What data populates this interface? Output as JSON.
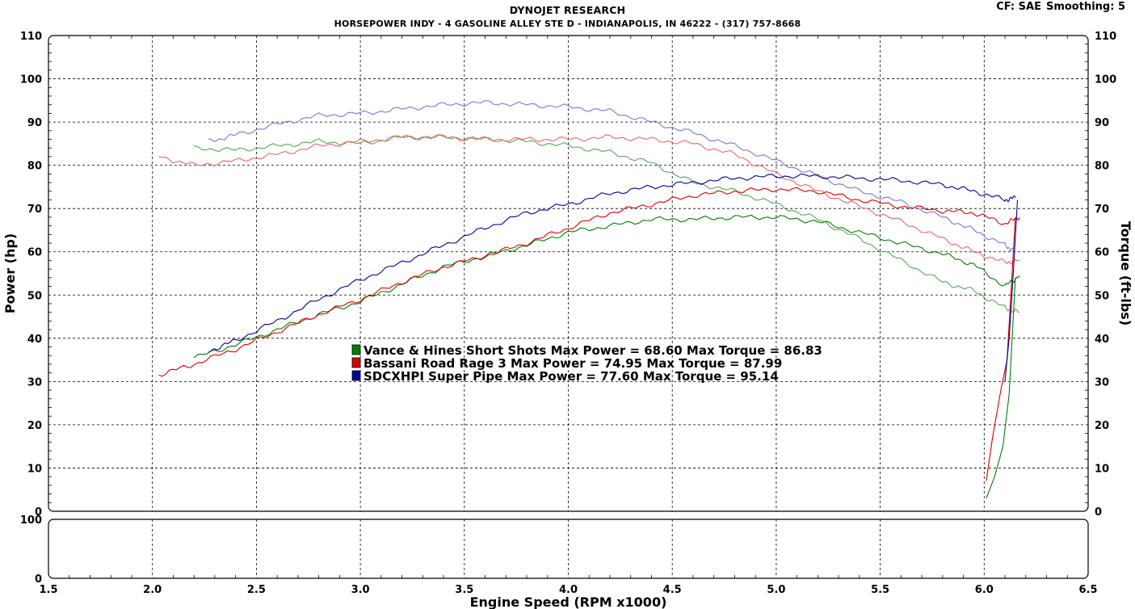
{
  "header": {
    "title": "DYNOJET RESEARCH",
    "subtitle": "HORSEPOWER INDY - 4 GASOLINE ALLEY STE D - INDIANAPOLIS, IN 46222 - (317) 757-8668",
    "cf_label": "CF: SAE",
    "smoothing_label": "Smoothing: 5"
  },
  "chart_data": {
    "type": "line",
    "title": "DYNOJET RESEARCH",
    "xlabel": "Engine Speed (RPM x1000)",
    "ylabel_left": "Power (hp)",
    "ylabel_right": "Torque (ft-lbs)",
    "xlim": [
      1.5,
      6.5
    ],
    "ylim": [
      0,
      110
    ],
    "lower_panel_ylim": [
      0,
      100
    ],
    "x_ticks": [
      "1.5",
      "2.0",
      "2.5",
      "3.0",
      "3.5",
      "4.0",
      "4.5",
      "5.0",
      "5.5",
      "6.0",
      "6.5"
    ],
    "y_ticks": [
      "0",
      "10",
      "20",
      "30",
      "40",
      "50",
      "60",
      "70",
      "80",
      "90",
      "100",
      "110"
    ],
    "lower_y_ticks": [
      "0",
      "100"
    ],
    "grid": true,
    "legend_position": "center",
    "series": [
      {
        "name": "Vance & Hines Short Shots",
        "legend": "Vance & Hines Short Shots Max Power = 68.60     Max Torque = 86.83",
        "color": "#008000",
        "torque_color": "#55aa55",
        "power": {
          "x": [
            2.2,
            2.4,
            2.6,
            2.8,
            3.0,
            3.2,
            3.4,
            3.6,
            3.8,
            4.0,
            4.2,
            4.4,
            4.6,
            4.8,
            5.0,
            5.2,
            5.4,
            5.6,
            5.8,
            5.95,
            6.1,
            6.17
          ],
          "y": [
            35.5,
            38.5,
            42,
            45.5,
            48.5,
            52.5,
            56.5,
            59,
            61.5,
            64.5,
            66,
            67.5,
            67.5,
            68,
            68,
            67,
            64.5,
            62,
            59.5,
            57,
            52,
            54.5
          ]
        },
        "torque": {
          "x": [
            2.2,
            2.4,
            2.6,
            2.8,
            3.0,
            3.2,
            3.4,
            3.6,
            3.8,
            4.0,
            4.2,
            4.4,
            4.6,
            4.8,
            5.0,
            5.2,
            5.4,
            5.6,
            5.8,
            5.95,
            6.1,
            6.17
          ],
          "y": [
            84,
            83.5,
            84.5,
            85.5,
            85,
            86.5,
            86.5,
            86,
            85.5,
            84.5,
            83,
            80.5,
            76,
            74,
            71,
            67.5,
            63,
            58,
            53,
            51,
            47,
            46
          ]
        },
        "drop": {
          "x": [
            6.01,
            6.05,
            6.09,
            6.12,
            6.15
          ],
          "y": [
            3,
            8,
            15,
            27,
            54
          ]
        },
        "max_power": 68.6,
        "max_torque": 86.83
      },
      {
        "name": "Bassani Road Rage 3",
        "legend": "Bassani Road Rage 3 Max Power = 74.95     Max Torque = 87.99",
        "color": "#dd0000",
        "torque_color": "#ee6666",
        "power": {
          "x": [
            2.03,
            2.2,
            2.4,
            2.6,
            2.8,
            3.0,
            3.2,
            3.4,
            3.6,
            3.8,
            4.0,
            4.2,
            4.4,
            4.6,
            4.8,
            5.0,
            5.2,
            5.4,
            5.6,
            5.8,
            5.95,
            6.1,
            6.17
          ],
          "y": [
            31.5,
            34,
            37.5,
            41.5,
            45.5,
            49,
            53,
            56.5,
            59,
            62,
            65.5,
            69,
            71,
            73,
            74,
            74.5,
            74,
            72,
            70.5,
            69.5,
            69,
            66.5,
            68
          ]
        },
        "torque": {
          "x": [
            2.03,
            2.2,
            2.4,
            2.6,
            2.8,
            3.0,
            3.2,
            3.4,
            3.6,
            3.8,
            4.0,
            4.2,
            4.4,
            4.6,
            4.8,
            5.0,
            5.2,
            5.4,
            5.6,
            5.8,
            5.95,
            6.1,
            6.17
          ],
          "y": [
            82,
            80,
            81,
            82.5,
            84.5,
            85.5,
            86.5,
            86.5,
            86,
            86,
            86,
            86.5,
            86,
            85,
            82.5,
            78,
            74,
            70.5,
            67,
            63,
            60,
            57.5,
            58
          ]
        },
        "drop": {
          "x": [
            6.01,
            6.04,
            6.08,
            6.11,
            6.15
          ],
          "y": [
            7,
            17,
            28,
            35,
            68
          ]
        },
        "max_power": 74.95,
        "max_torque": 87.99
      },
      {
        "name": "SDCXHPI Super Pipe",
        "legend": "SDCXHPI Super Pipe Max Power = 77.60     Max Torque = 95.14",
        "color": "#000099",
        "torque_color": "#7777dd",
        "power": {
          "x": [
            2.27,
            2.4,
            2.6,
            2.8,
            3.0,
            3.2,
            3.4,
            3.6,
            3.8,
            4.0,
            4.2,
            4.4,
            4.6,
            4.8,
            5.0,
            5.2,
            5.4,
            5.6,
            5.8,
            5.95,
            6.1,
            6.15
          ],
          "y": [
            37,
            39.5,
            44,
            49,
            53.5,
            57.5,
            61.5,
            65.5,
            69,
            71,
            73.5,
            75,
            76,
            77,
            77.5,
            77.5,
            77,
            76.5,
            75.5,
            74,
            72,
            72.5
          ]
        },
        "torque": {
          "x": [
            2.27,
            2.4,
            2.6,
            2.8,
            3.0,
            3.2,
            3.4,
            3.6,
            3.8,
            4.0,
            4.2,
            4.4,
            4.6,
            4.8,
            5.0,
            5.2,
            5.4,
            5.6,
            5.8,
            5.95,
            6.1,
            6.15
          ],
          "y": [
            85.5,
            87,
            89.5,
            91.5,
            92,
            93,
            94,
            94.5,
            94,
            93.5,
            92.5,
            90,
            87.5,
            84.5,
            81,
            77.5,
            74,
            71.5,
            68,
            65,
            61.5,
            60
          ]
        },
        "drop": {
          "x": [
            6.1,
            6.12,
            6.14,
            6.16
          ],
          "y": [
            30,
            40,
            55,
            72
          ]
        },
        "max_power": 77.6,
        "max_torque": 95.14
      }
    ]
  }
}
